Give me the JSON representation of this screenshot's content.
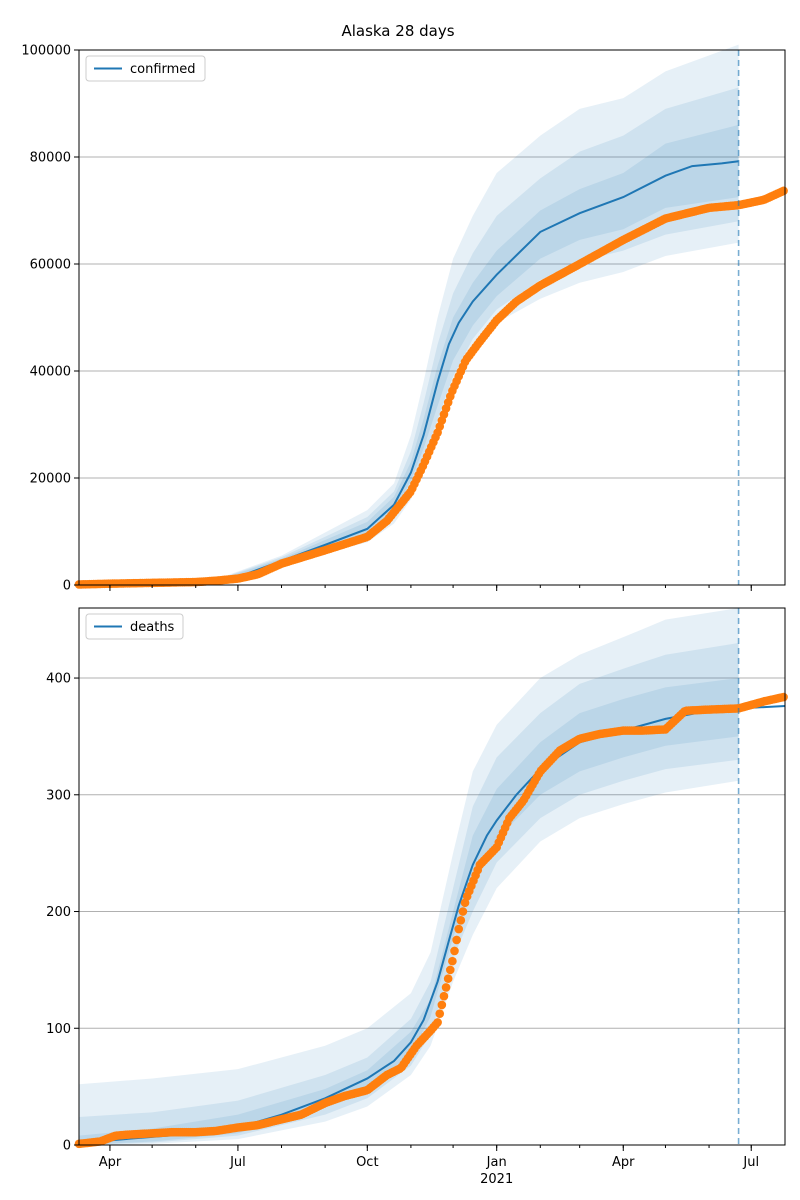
{
  "title": "Alaska 28 days",
  "colors": {
    "model_line": "#1f77b4",
    "observed_points": "#ff7f0e",
    "band": "#1f77b4",
    "grid": "#b0b0b0",
    "forecast_marker": "#1f77b4"
  },
  "x_axis": {
    "range": [
      "2020-03-10",
      "2021-07-25"
    ],
    "ticks": [
      {
        "date": "2020-04-01",
        "label": "Apr"
      },
      {
        "date": "2020-07-01",
        "label": "Jul"
      },
      {
        "date": "2020-10-01",
        "label": "Oct"
      },
      {
        "date": "2021-01-01",
        "label": "Jan"
      },
      {
        "date": "2021-04-01",
        "label": "Apr"
      },
      {
        "date": "2021-07-01",
        "label": "Jul"
      }
    ],
    "year_label": {
      "date": "2021-01-01",
      "label": "2021"
    },
    "forecast_start": "2021-06-22"
  },
  "chart_data": [
    {
      "type": "line",
      "title": "Alaska 28 days",
      "legend": {
        "label": "confirmed",
        "position": "top-left"
      },
      "ylim": [
        0,
        100000
      ],
      "yticks": [
        0,
        20000,
        40000,
        60000,
        80000,
        100000
      ],
      "grid": "y",
      "model": {
        "x": [
          "2020-03-10",
          "2020-05-01",
          "2020-06-15",
          "2020-07-01",
          "2020-08-01",
          "2020-09-01",
          "2020-10-01",
          "2020-10-20",
          "2020-11-01",
          "2020-11-10",
          "2020-11-20",
          "2020-11-28",
          "2020-12-05",
          "2020-12-15",
          "2021-01-01",
          "2021-02-01",
          "2021-03-01",
          "2021-04-01",
          "2021-05-01",
          "2021-05-20",
          "2021-06-10",
          "2021-06-22"
        ],
        "y": [
          100,
          350,
          700,
          1500,
          4500,
          7500,
          10500,
          15000,
          21000,
          28000,
          38000,
          45000,
          49000,
          53000,
          58000,
          66000,
          69500,
          72500,
          76500,
          78300,
          78800,
          79200
        ]
      },
      "bands": [
        {
          "x": [
            "2020-03-10",
            "2020-06-15",
            "2020-08-01",
            "2020-10-01",
            "2020-10-20",
            "2020-11-01",
            "2020-11-10",
            "2020-11-20",
            "2020-12-01",
            "2020-12-15",
            "2021-01-01",
            "2021-02-01",
            "2021-03-01",
            "2021-04-01",
            "2021-05-01",
            "2021-06-22"
          ],
          "lower": [
            50,
            500,
            3800,
            8000,
            11500,
            16000,
            21000,
            28000,
            36000,
            43000,
            49000,
            53500,
            56500,
            58500,
            61500,
            64000
          ],
          "upper": [
            150,
            1000,
            5500,
            14000,
            19000,
            28000,
            38000,
            50000,
            61000,
            69000,
            77000,
            84000,
            89000,
            91000,
            96000,
            101000
          ]
        },
        {
          "x": [
            "2020-03-10",
            "2020-06-15",
            "2020-08-01",
            "2020-10-01",
            "2020-10-20",
            "2020-11-01",
            "2020-11-10",
            "2020-11-20",
            "2020-12-01",
            "2020-12-15",
            "2021-01-01",
            "2021-02-01",
            "2021-03-01",
            "2021-04-01",
            "2021-05-01",
            "2021-06-22"
          ],
          "lower": [
            60,
            550,
            4000,
            8700,
            12500,
            18000,
            23500,
            31000,
            39000,
            46000,
            51500,
            57000,
            60500,
            62500,
            65500,
            68000
          ],
          "upper": [
            140,
            900,
            5200,
            12700,
            17500,
            25000,
            34000,
            45000,
            54500,
            62000,
            69000,
            76000,
            81000,
            84000,
            89000,
            93000
          ]
        },
        {
          "x": [
            "2020-03-10",
            "2020-06-15",
            "2020-08-01",
            "2020-10-01",
            "2020-10-20",
            "2020-11-01",
            "2020-11-10",
            "2020-11-20",
            "2020-12-01",
            "2020-12-15",
            "2021-01-01",
            "2021-02-01",
            "2021-03-01",
            "2021-04-01",
            "2021-05-01",
            "2021-06-22"
          ],
          "lower": [
            70,
            600,
            4200,
            9300,
            13500,
            19500,
            25500,
            33500,
            42000,
            48500,
            54000,
            61000,
            64500,
            66500,
            70500,
            72500
          ],
          "upper": [
            130,
            800,
            4900,
            11800,
            16500,
            23000,
            31000,
            41000,
            50000,
            56500,
            62500,
            70000,
            74000,
            77000,
            82500,
            86000
          ]
        }
      ],
      "observed": {
        "x": [
          "2020-03-10",
          "2020-04-01",
          "2020-05-01",
          "2020-06-01",
          "2020-06-15",
          "2020-07-01",
          "2020-07-15",
          "2020-08-01",
          "2020-09-01",
          "2020-10-01",
          "2020-10-15",
          "2020-11-01",
          "2020-11-10",
          "2020-11-20",
          "2020-11-30",
          "2020-12-10",
          "2020-12-20",
          "2021-01-01",
          "2021-01-15",
          "2021-02-01",
          "2021-03-01",
          "2021-04-01",
          "2021-05-01",
          "2021-06-01",
          "2021-06-22",
          "2021-07-10",
          "2021-07-25"
        ],
        "y": [
          100,
          250,
          400,
          550,
          800,
          1200,
          2000,
          4000,
          6500,
          9000,
          12000,
          17500,
          22500,
          28500,
          36000,
          42000,
          45500,
          49500,
          53000,
          56000,
          60000,
          64500,
          68500,
          70500,
          71000,
          72000,
          73800
        ]
      }
    },
    {
      "type": "line",
      "legend": {
        "label": "deaths",
        "position": "top-left"
      },
      "ylim": [
        0,
        460
      ],
      "yticks": [
        0,
        100,
        200,
        300,
        400
      ],
      "grid": "y",
      "model": {
        "x": [
          "2020-03-10",
          "2020-04-01",
          "2020-05-01",
          "2020-06-01",
          "2020-07-01",
          "2020-08-01",
          "2020-09-01",
          "2020-10-01",
          "2020-10-20",
          "2020-11-01",
          "2020-11-10",
          "2020-11-20",
          "2020-11-28",
          "2020-12-05",
          "2020-12-15",
          "2020-12-25",
          "2021-01-01",
          "2021-01-15",
          "2021-02-01",
          "2021-03-01",
          "2021-04-01",
          "2021-05-01",
          "2021-06-01",
          "2021-06-22",
          "2021-07-25"
        ],
        "y": [
          1,
          4,
          7,
          10,
          15,
          26,
          40,
          57,
          72,
          88,
          107,
          140,
          175,
          205,
          240,
          265,
          278,
          300,
          322,
          345,
          355,
          365,
          372,
          374,
          376
        ]
      },
      "bands": [
        {
          "x": [
            "2020-03-10",
            "2020-05-01",
            "2020-07-01",
            "2020-09-01",
            "2020-10-01",
            "2020-11-01",
            "2020-11-15",
            "2020-12-01",
            "2020-12-15",
            "2021-01-01",
            "2021-02-01",
            "2021-03-01",
            "2021-04-01",
            "2021-05-01",
            "2021-06-22"
          ],
          "lower": [
            0,
            1,
            5,
            20,
            33,
            60,
            85,
            140,
            180,
            220,
            260,
            280,
            292,
            302,
            312
          ],
          "upper": [
            52,
            57,
            65,
            85,
            100,
            130,
            165,
            250,
            320,
            360,
            400,
            420,
            435,
            450,
            460
          ]
        },
        {
          "x": [
            "2020-03-10",
            "2020-05-01",
            "2020-07-01",
            "2020-09-01",
            "2020-10-01",
            "2020-11-01",
            "2020-11-15",
            "2020-12-01",
            "2020-12-15",
            "2021-01-01",
            "2021-02-01",
            "2021-03-01",
            "2021-04-01",
            "2021-05-01",
            "2021-06-22"
          ],
          "lower": [
            0,
            2,
            8,
            26,
            40,
            68,
            95,
            160,
            200,
            242,
            280,
            300,
            312,
            322,
            330
          ],
          "upper": [
            24,
            28,
            38,
            60,
            75,
            108,
            140,
            220,
            290,
            332,
            370,
            395,
            408,
            420,
            430
          ]
        },
        {
          "x": [
            "2020-03-10",
            "2020-05-01",
            "2020-07-01",
            "2020-09-01",
            "2020-10-01",
            "2020-11-01",
            "2020-11-15",
            "2020-12-01",
            "2020-12-15",
            "2021-01-01",
            "2021-02-01",
            "2021-03-01",
            "2021-04-01",
            "2021-05-01",
            "2021-06-22"
          ],
          "lower": [
            0,
            3,
            10,
            32,
            48,
            78,
            110,
            178,
            220,
            262,
            300,
            320,
            332,
            342,
            350
          ],
          "upper": [
            8,
            14,
            26,
            48,
            64,
            97,
            125,
            200,
            265,
            305,
            345,
            370,
            382,
            392,
            400
          ]
        }
      ],
      "observed": {
        "x": [
          "2020-03-10",
          "2020-03-25",
          "2020-04-05",
          "2020-04-15",
          "2020-05-01",
          "2020-05-15",
          "2020-06-01",
          "2020-06-15",
          "2020-07-01",
          "2020-07-15",
          "2020-08-01",
          "2020-08-15",
          "2020-09-01",
          "2020-09-15",
          "2020-10-01",
          "2020-10-15",
          "2020-10-25",
          "2020-11-05",
          "2020-11-15",
          "2020-11-20",
          "2020-11-25",
          "2020-12-01",
          "2020-12-05",
          "2020-12-10",
          "2020-12-15",
          "2020-12-20",
          "2021-01-01",
          "2021-01-10",
          "2021-01-20",
          "2021-02-01",
          "2021-02-15",
          "2021-03-01",
          "2021-03-15",
          "2021-04-01",
          "2021-04-15",
          "2021-05-01",
          "2021-05-15",
          "2021-06-01",
          "2021-06-22",
          "2021-07-10",
          "2021-07-25"
        ],
        "y": [
          1,
          3,
          8,
          9,
          10,
          11,
          11,
          12,
          15,
          17,
          22,
          26,
          36,
          42,
          47,
          60,
          66,
          85,
          98,
          105,
          130,
          160,
          185,
          210,
          225,
          240,
          255,
          280,
          295,
          320,
          338,
          348,
          352,
          355,
          355,
          356,
          372,
          373,
          374,
          380,
          384
        ]
      }
    }
  ]
}
